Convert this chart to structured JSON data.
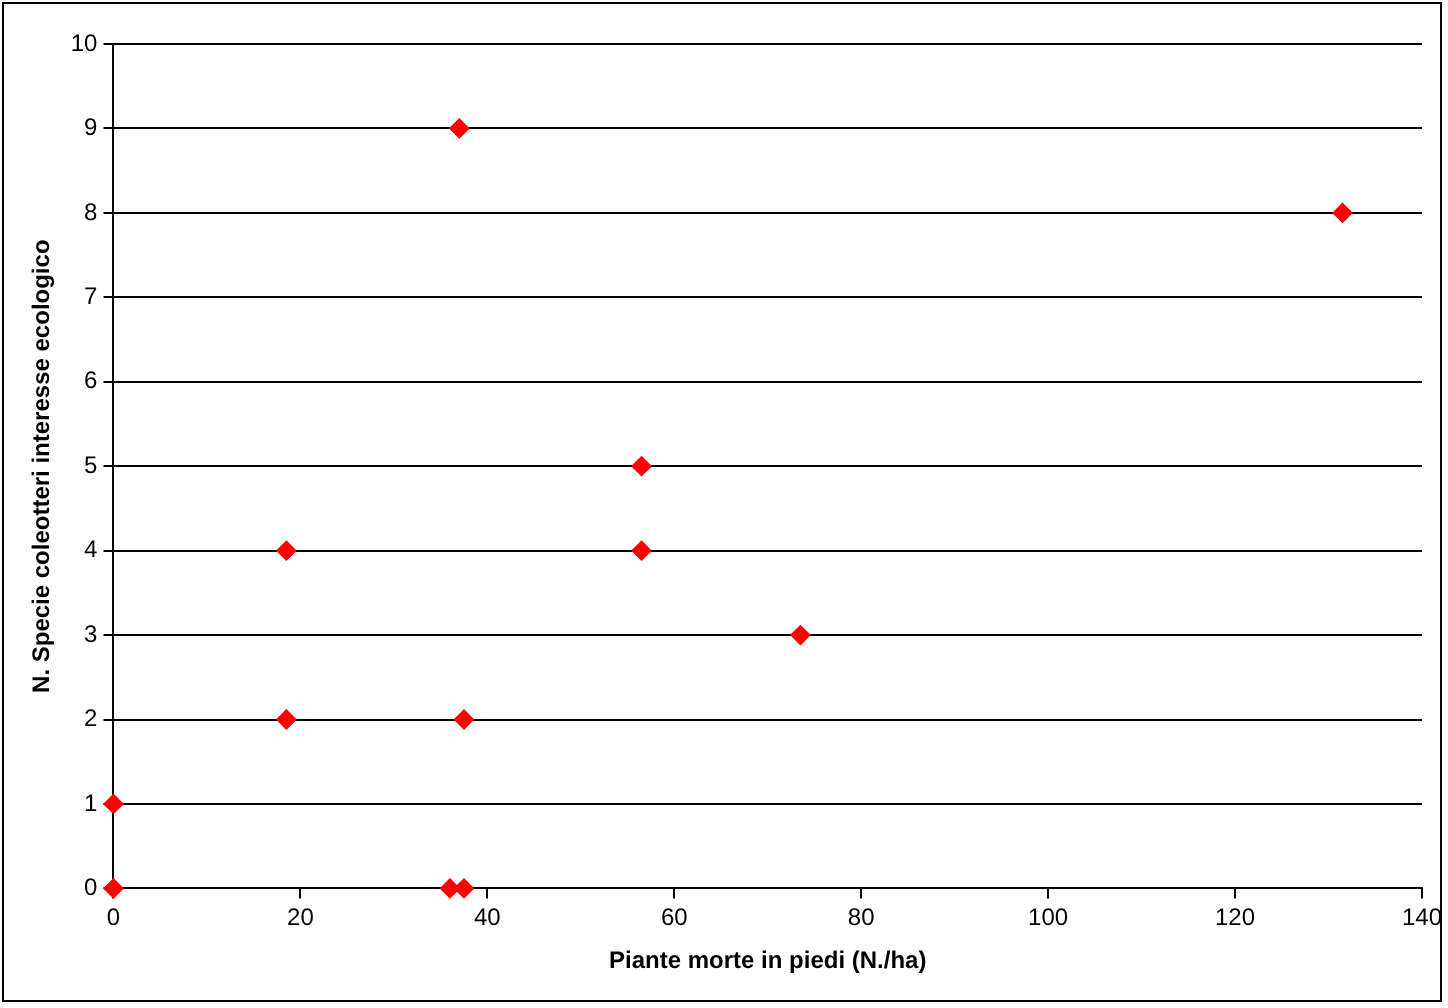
{
  "chart_data": {
    "type": "scatter",
    "xlabel": "Piante morte in piedi (N./ha)",
    "ylabel": "N. Specie coleotteri interesse ecologico",
    "x": [
      0,
      0,
      18.5,
      18.5,
      37,
      36,
      37.5,
      37.5,
      56.5,
      56.5,
      73.5,
      131.5
    ],
    "values": [
      0,
      1,
      4,
      2,
      9,
      0,
      0,
      2,
      5,
      4,
      3,
      8
    ],
    "color": "#ff0000",
    "marker": "diamond",
    "xlim": [
      0,
      140
    ],
    "xticks": [
      0,
      20,
      40,
      60,
      80,
      100,
      120,
      140
    ],
    "ylim": [
      0,
      10
    ],
    "yticks": [
      0,
      1,
      2,
      3,
      4,
      5,
      6,
      7,
      8,
      9,
      10
    ],
    "grid": "y"
  }
}
